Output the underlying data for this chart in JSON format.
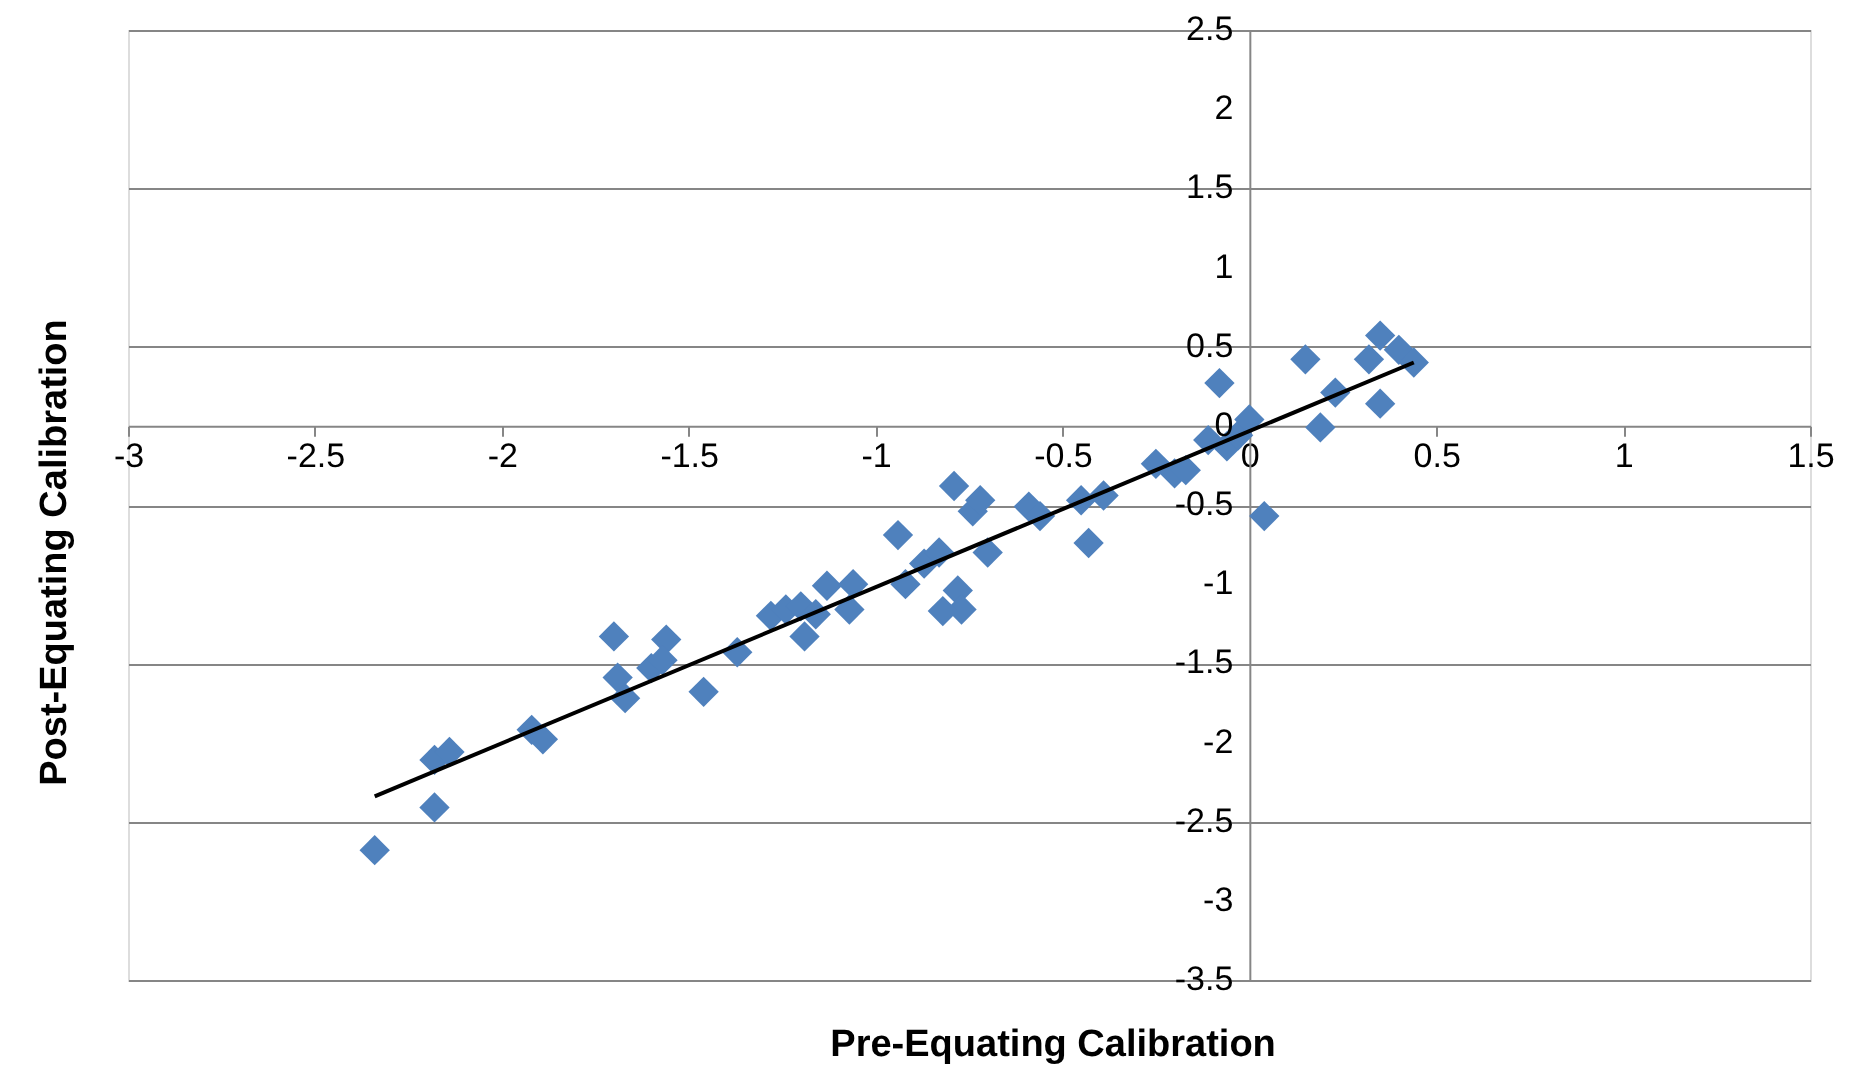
{
  "chart_data": {
    "type": "scatter",
    "xlabel": "Pre-Equating Calibration",
    "ylabel": "Post-Equating Calibration",
    "xlim": [
      -3,
      1.5
    ],
    "xticks": [
      -3,
      -2.5,
      -2,
      -1.5,
      -1,
      -0.5,
      0,
      0.5,
      1,
      1.5
    ],
    "ylim": [
      -3.5,
      2.5
    ],
    "yticks": [
      -3.5,
      -3,
      -2.5,
      -2,
      -1.5,
      -1,
      -0.5,
      0,
      0.5,
      1,
      1.5,
      2,
      2.5
    ],
    "grid": "y",
    "marker": "diamond",
    "series": [
      {
        "type": "scatter",
        "color": "#4f81bd",
        "x": [
          -2.34,
          -2.18,
          -2.14,
          -2.18,
          -1.92,
          -1.89,
          -1.7,
          -1.69,
          -1.67,
          -1.6,
          -1.56,
          -1.57,
          -1.46,
          -1.37,
          -1.28,
          -1.24,
          -1.2,
          -1.19,
          -1.16,
          -1.13,
          -1.07,
          -1.06,
          -0.94,
          -0.92,
          -0.87,
          -0.83,
          -0.79,
          -0.78,
          -0.77,
          -0.82,
          -0.74,
          -0.72,
          -0.7,
          -0.59,
          -0.56,
          -0.43,
          -0.45,
          -0.39,
          -0.25,
          -0.2,
          -0.17,
          -0.08,
          -0.11,
          -0.06,
          -0.03,
          0.0,
          0.04,
          0.15,
          0.19,
          0.23,
          0.32,
          0.35,
          0.35,
          0.4,
          0.44
        ],
        "values": [
          -2.68,
          -2.11,
          -2.06,
          -2.41,
          -1.92,
          -1.98,
          -1.33,
          -1.59,
          -1.72,
          -1.53,
          -1.35,
          -1.48,
          -1.68,
          -1.43,
          -1.2,
          -1.16,
          -1.14,
          -1.33,
          -1.19,
          -1.01,
          -1.16,
          -1.0,
          -0.69,
          -1.0,
          -0.87,
          -0.8,
          -0.38,
          -1.04,
          -1.16,
          -1.17,
          -0.54,
          -0.47,
          -0.8,
          -0.51,
          -0.57,
          -0.74,
          -0.47,
          -0.44,
          -0.24,
          -0.3,
          -0.28,
          0.27,
          -0.09,
          -0.13,
          -0.06,
          0.04,
          -0.57,
          0.42,
          -0.01,
          0.21,
          0.42,
          0.57,
          0.14,
          0.48,
          0.4
        ]
      },
      {
        "type": "line",
        "color": "#000000",
        "marker": "none",
        "x": [
          -2.34,
          0.44
        ],
        "values": [
          -2.34,
          0.4
        ]
      }
    ]
  }
}
